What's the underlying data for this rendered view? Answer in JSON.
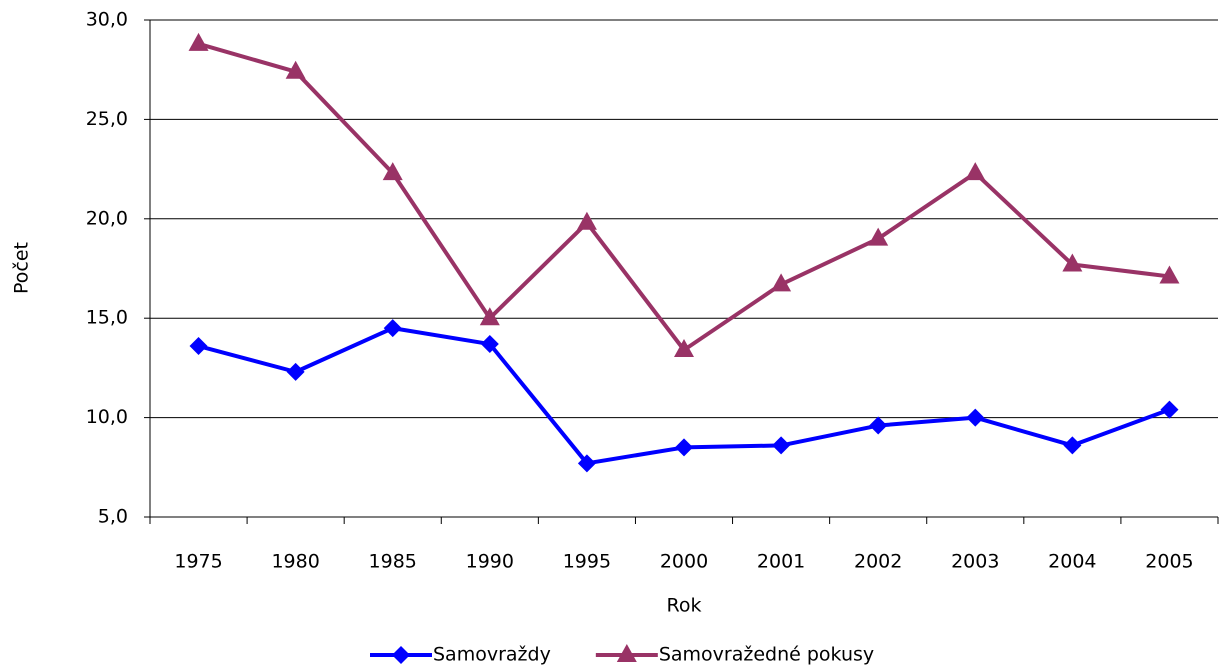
{
  "chart_data": {
    "type": "line",
    "x_label": "Rok",
    "y_label": "Počet",
    "categories": [
      "1975",
      "1980",
      "1985",
      "1990",
      "1995",
      "2000",
      "2001",
      "2002",
      "2003",
      "2004",
      "2005"
    ],
    "series": [
      {
        "name": "Samovraždy",
        "color": "#0000ff",
        "marker": "diamond",
        "values": [
          13.6,
          12.3,
          14.5,
          13.7,
          7.7,
          8.5,
          8.6,
          9.6,
          10.0,
          8.6,
          10.4
        ]
      },
      {
        "name": "Samovražedné pokusy",
        "color": "#993366",
        "marker": "triangle",
        "values": [
          28.8,
          27.4,
          22.3,
          15.0,
          19.8,
          13.4,
          16.7,
          19.0,
          22.3,
          17.7,
          17.1
        ]
      }
    ],
    "ylim": [
      5,
      30
    ],
    "yticks": [
      {
        "value": 5,
        "label": "5,0"
      },
      {
        "value": 10,
        "label": "10,0"
      },
      {
        "value": 15,
        "label": "15,0"
      },
      {
        "value": 20,
        "label": "20,0"
      },
      {
        "value": 25,
        "label": "25,0"
      },
      {
        "value": 30,
        "label": "30,0"
      }
    ],
    "grid": true,
    "legend": "bottom"
  }
}
